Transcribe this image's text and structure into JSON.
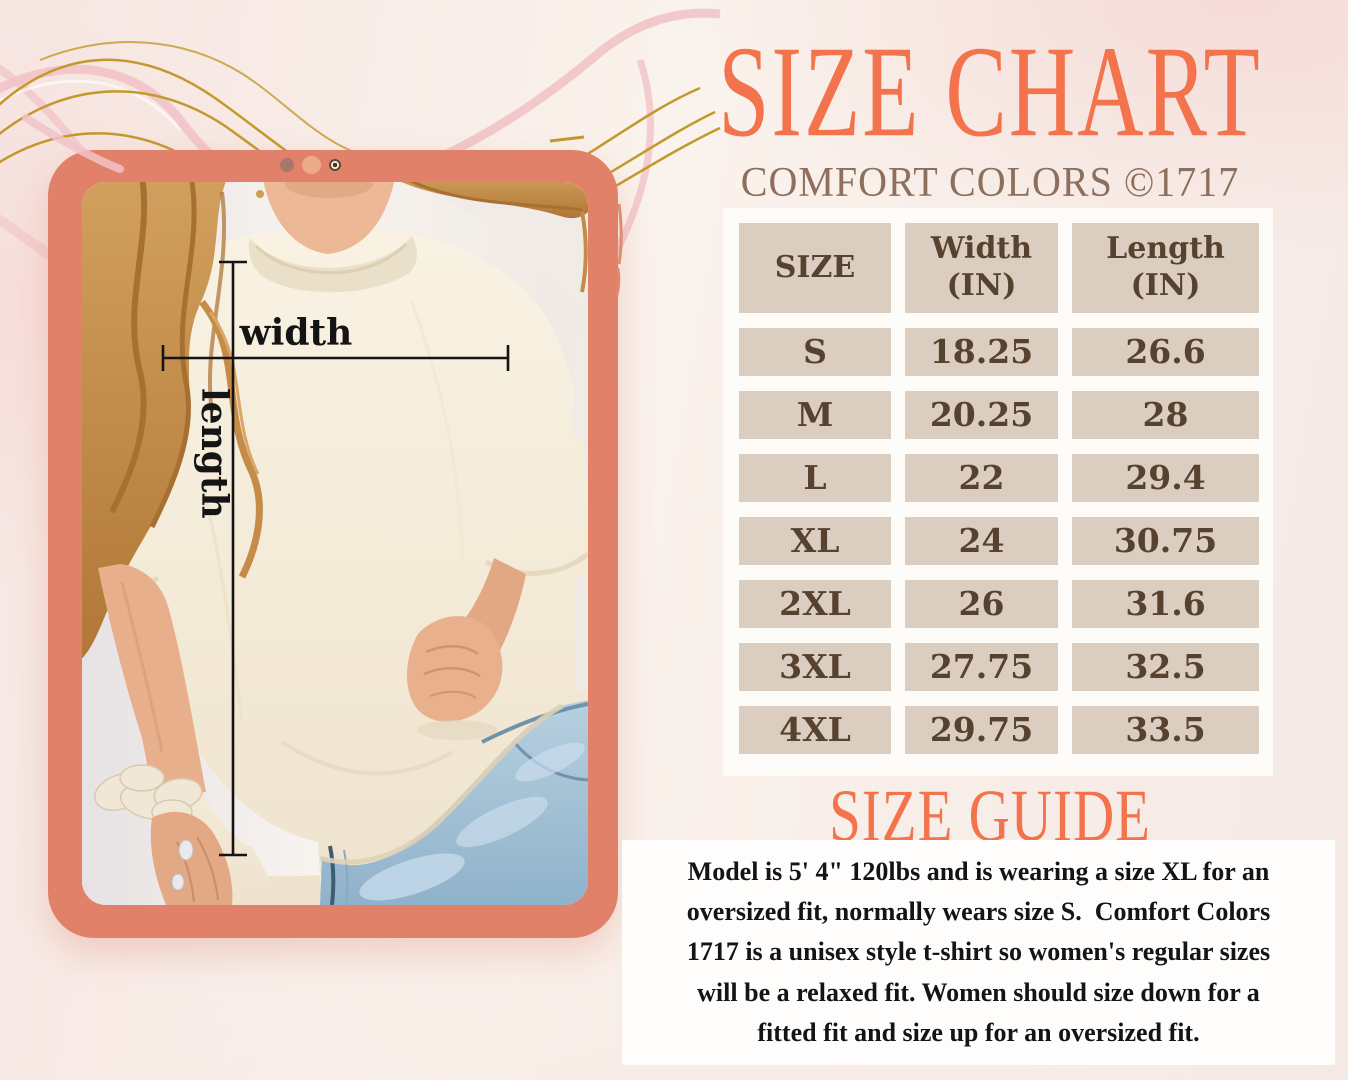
{
  "header": {
    "title": "SIZE CHART",
    "subtitle": "COMFORT COLORS ©1717",
    "title_color": "#f2734c",
    "subtitle_color": "#8c6f5c"
  },
  "size_table": {
    "columns": [
      "SIZE",
      "Width\n(IN)",
      "Length\n(IN)"
    ],
    "rows": [
      [
        "S",
        "18.25",
        "26.6"
      ],
      [
        "M",
        "20.25",
        "28"
      ],
      [
        "L",
        "22",
        "29.4"
      ],
      [
        "XL",
        "24",
        "30.75"
      ],
      [
        "2XL",
        "26",
        "31.6"
      ],
      [
        "3XL",
        "27.75",
        "32.5"
      ],
      [
        "4XL",
        "29.75",
        "33.5"
      ]
    ],
    "panel_bg": "#fdfcf9",
    "cell_bg": "#dbcec0",
    "text_color": "#56422f"
  },
  "size_guide": {
    "heading": "SIZE GUIDE",
    "text": "Model is 5' 4\" 120lbs and is wearing a size XL for an\noversized fit, normally wears size S.  Comfort Colors\n1717 is a unisex style t-shirt so women's regular sizes\nwill be a relaxed fit. Women should size down for a\nfitted fit and size up for an oversized fit."
  },
  "photo_overlay": {
    "width_label": "width",
    "length_label": "length"
  },
  "device": {
    "frame_color": "#e2816a"
  },
  "decor": {
    "gold": "#c2992d",
    "pink": "#f1c3c8"
  }
}
